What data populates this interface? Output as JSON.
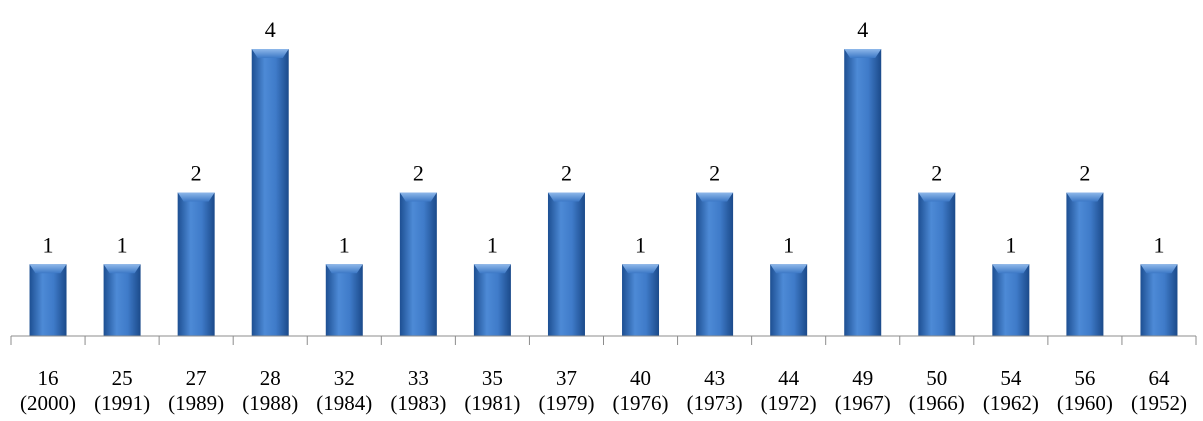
{
  "chart_data": {
    "type": "bar",
    "categories": [
      [
        "16",
        "(2000)"
      ],
      [
        "25",
        "(1991)"
      ],
      [
        "27",
        "(1989)"
      ],
      [
        "28",
        "(1988)"
      ],
      [
        "32",
        "(1984)"
      ],
      [
        "33",
        "(1983)"
      ],
      [
        "35",
        "(1981)"
      ],
      [
        "37",
        "(1979)"
      ],
      [
        "40",
        "(1976)"
      ],
      [
        "43",
        "(1973)"
      ],
      [
        "44",
        "(1972)"
      ],
      [
        "49",
        "(1967)"
      ],
      [
        "50",
        "(1966)"
      ],
      [
        "54",
        "(1962)"
      ],
      [
        "56",
        "(1960)"
      ],
      [
        "64",
        "(1952)"
      ]
    ],
    "values": [
      1,
      1,
      2,
      4,
      1,
      2,
      1,
      2,
      1,
      2,
      1,
      4,
      2,
      1,
      2,
      1
    ],
    "ylim": [
      0,
      4
    ],
    "grid": false,
    "bar_color": "#2e6db8",
    "data_labels": true
  }
}
